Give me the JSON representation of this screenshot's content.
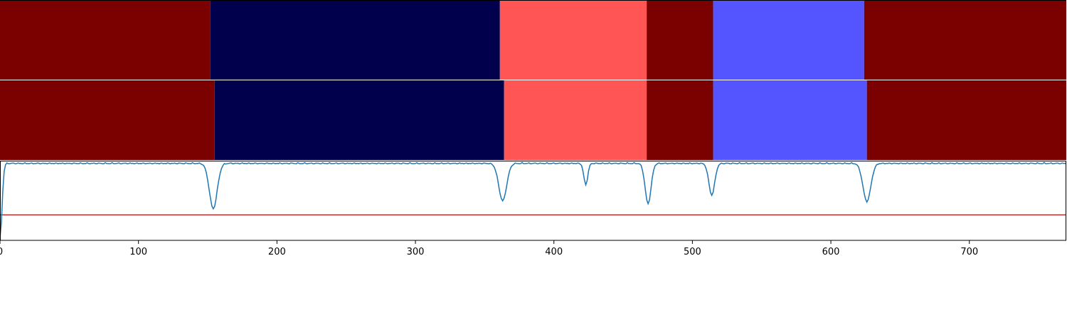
{
  "chart_data": {
    "type": "segmentation_timeline",
    "xlim": [
      0,
      770
    ],
    "xticks": [
      0,
      100,
      200,
      300,
      400,
      500,
      600,
      700
    ],
    "xtick_labels": [
      "0",
      "100",
      "200",
      "300",
      "400",
      "500",
      "600",
      "700"
    ],
    "palette": {
      "dark_red": "#7b0000",
      "navy": "#00004c",
      "light_red": "#ff5555",
      "light_blue": "#5555ff",
      "signal": "#1f77b4",
      "threshold": "#d62728"
    },
    "segment_rows": [
      {
        "segments": [
          {
            "start": 0,
            "end": 152,
            "color": "dark_red"
          },
          {
            "start": 152,
            "end": 361,
            "color": "navy"
          },
          {
            "start": 361,
            "end": 467,
            "color": "light_red"
          },
          {
            "start": 467,
            "end": 515,
            "color": "dark_red"
          },
          {
            "start": 515,
            "end": 624,
            "color": "light_blue"
          },
          {
            "start": 624,
            "end": 770,
            "color": "dark_red"
          }
        ]
      },
      {
        "segments": [
          {
            "start": 0,
            "end": 155,
            "color": "dark_red"
          },
          {
            "start": 155,
            "end": 364,
            "color": "navy"
          },
          {
            "start": 364,
            "end": 467,
            "color": "light_red"
          },
          {
            "start": 467,
            "end": 515,
            "color": "dark_red"
          },
          {
            "start": 515,
            "end": 626,
            "color": "light_blue"
          },
          {
            "start": 626,
            "end": 770,
            "color": "dark_red"
          }
        ]
      }
    ],
    "signal_panel": {
      "ylim": [
        0,
        1
      ],
      "threshold": 0.32,
      "baseline": 0.99,
      "dips": [
        {
          "x": 0,
          "depth": 0.95,
          "width": 2
        },
        {
          "x": 154,
          "depth": 0.57,
          "width": 4
        },
        {
          "x": 363,
          "depth": 0.47,
          "width": 4
        },
        {
          "x": 423,
          "depth": 0.27,
          "width": 2
        },
        {
          "x": 468,
          "depth": 0.51,
          "width": 3
        },
        {
          "x": 514,
          "depth": 0.4,
          "width": 3
        },
        {
          "x": 626,
          "depth": 0.48,
          "width": 4
        }
      ]
    }
  }
}
